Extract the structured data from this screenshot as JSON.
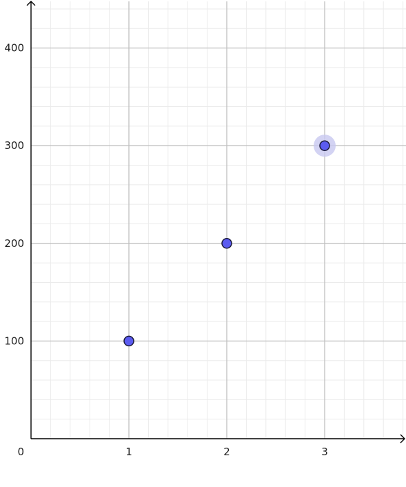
{
  "chart_data": {
    "type": "scatter",
    "x": [
      1,
      2,
      3
    ],
    "y": [
      100,
      200,
      300
    ],
    "highlighted_index": 2,
    "xlim": [
      0,
      3.85
    ],
    "ylim": [
      0,
      448
    ],
    "x_ticks": [
      "1",
      "2",
      "3"
    ],
    "y_ticks": [
      "100",
      "200",
      "300",
      "400"
    ],
    "origin_label": "0",
    "grid": true,
    "title": "",
    "xlabel": "",
    "ylabel": ""
  },
  "colors": {
    "point_fill": "#5b5bf0",
    "point_stroke": "#1a1a3a",
    "highlight_halo": "#c8c8f0",
    "major_grid": "#c0c0c0",
    "minor_grid": "#ebebeb",
    "axis": "#000000"
  }
}
